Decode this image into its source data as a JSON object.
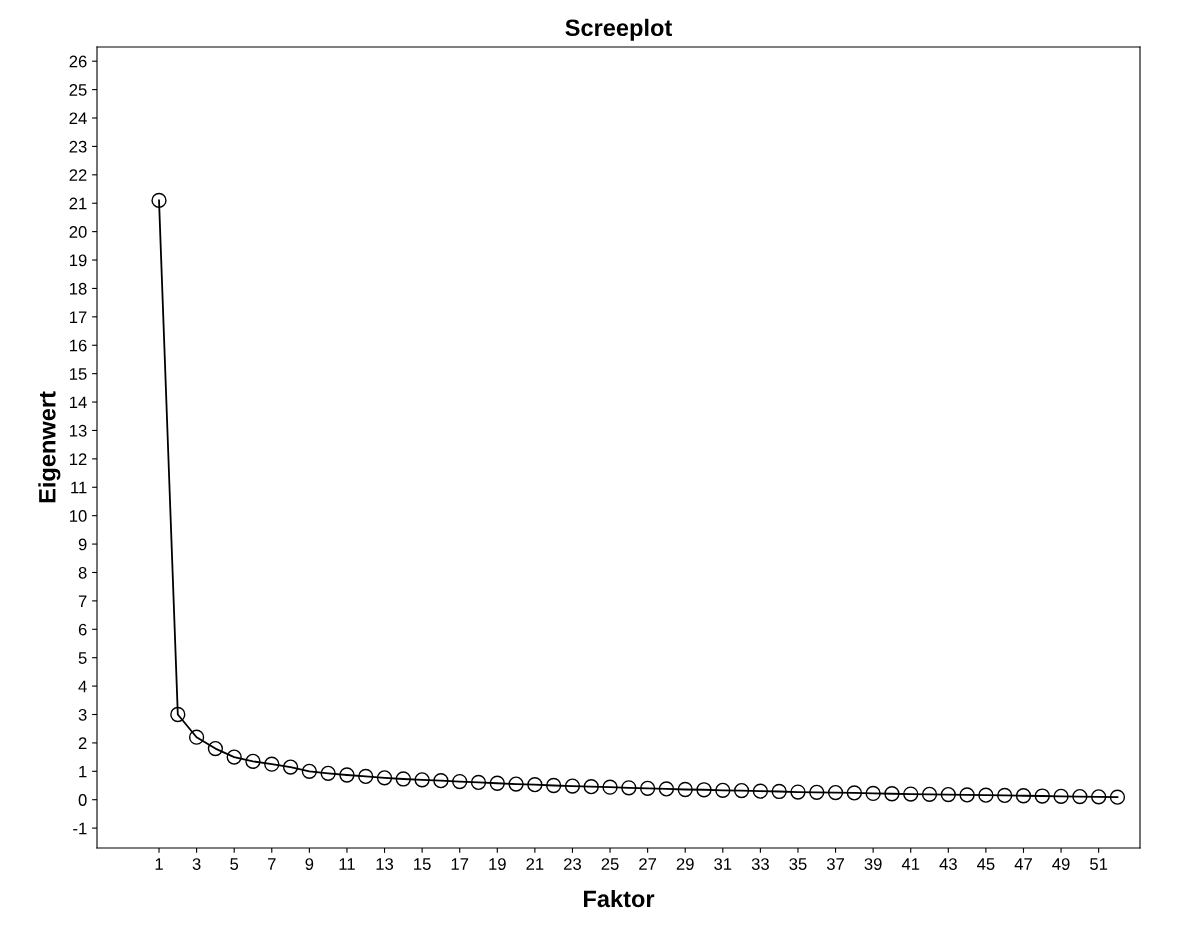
{
  "chart_data": {
    "type": "line",
    "title": "Screeplot",
    "xlabel": "Faktor",
    "ylabel": "Eigenwert",
    "x": [
      1,
      2,
      3,
      4,
      5,
      6,
      7,
      8,
      9,
      10,
      11,
      12,
      13,
      14,
      15,
      16,
      17,
      18,
      19,
      20,
      21,
      22,
      23,
      24,
      25,
      26,
      27,
      28,
      29,
      30,
      31,
      32,
      33,
      34,
      35,
      36,
      37,
      38,
      39,
      40,
      41,
      42,
      43,
      44,
      45,
      46,
      47,
      48,
      49,
      50,
      51,
      52
    ],
    "series": [
      {
        "color": "#000000",
        "values": [
          21.1,
          3.0,
          2.2,
          1.8,
          1.5,
          1.35,
          1.25,
          1.15,
          1.0,
          0.93,
          0.87,
          0.82,
          0.77,
          0.73,
          0.7,
          0.67,
          0.64,
          0.61,
          0.58,
          0.55,
          0.53,
          0.5,
          0.48,
          0.46,
          0.44,
          0.42,
          0.4,
          0.38,
          0.36,
          0.35,
          0.33,
          0.32,
          0.3,
          0.29,
          0.27,
          0.26,
          0.25,
          0.24,
          0.22,
          0.21,
          0.2,
          0.19,
          0.18,
          0.17,
          0.16,
          0.15,
          0.14,
          0.13,
          0.12,
          0.11,
          0.1,
          0.09
        ]
      }
    ],
    "xlim": [
      -2.3,
      53.2
    ],
    "xticks": [
      1,
      3,
      5,
      7,
      9,
      11,
      13,
      15,
      17,
      19,
      21,
      23,
      25,
      27,
      29,
      31,
      33,
      35,
      37,
      39,
      41,
      43,
      45,
      47,
      49,
      51
    ],
    "ylim": [
      -1.7,
      26.5
    ],
    "yticks": [
      -1,
      0,
      1,
      2,
      3,
      4,
      5,
      6,
      7,
      8,
      9,
      10,
      11,
      12,
      13,
      14,
      15,
      16,
      17,
      18,
      19,
      20,
      21,
      22,
      23,
      24,
      25,
      26
    ],
    "grid": false,
    "legend": false,
    "marker": "circle",
    "line_style": "solid"
  }
}
